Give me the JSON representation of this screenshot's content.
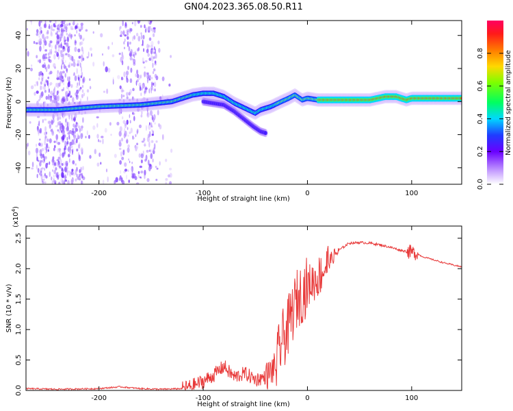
{
  "figure": {
    "title": "GN04.2023.365.08.50.R11"
  },
  "chart_data": [
    {
      "type": "heatmap",
      "xlabel": "Height of straight line (km)",
      "ylabel": "Frequency (Hz)",
      "xlim": [
        -270,
        148
      ],
      "ylim": [
        -50,
        49
      ],
      "xticks": [
        -200,
        -100,
        0,
        100
      ],
      "yticks": [
        -40,
        -20,
        0,
        20,
        40
      ],
      "tick_labels_x": [
        "-200",
        "-100",
        "0",
        "100"
      ],
      "tick_labels_y": [
        "-40",
        "-20",
        "0",
        "20",
        "40"
      ],
      "ridge": {
        "x": [
          -270,
          -240,
          -200,
          -160,
          -130,
          -110,
          -100,
          -90,
          -80,
          -70,
          -60,
          -50,
          -45,
          -35,
          -25,
          -18,
          -12,
          -5,
          0,
          10,
          30,
          60,
          75,
          85,
          95,
          100,
          148
        ],
        "y": [
          -5,
          -5,
          -3,
          -2,
          0,
          4,
          5,
          5,
          3,
          -1,
          -4,
          -7,
          -5,
          -3,
          0,
          2,
          4,
          1,
          2,
          1,
          1,
          1,
          3,
          3,
          1,
          2,
          2
        ]
      },
      "branch": {
        "x": [
          -100,
          -80,
          -70,
          -60,
          -52,
          -45,
          -40
        ],
        "y": [
          0,
          -2,
          -6,
          -11,
          -15,
          -18,
          -19
        ]
      },
      "colorbar": {
        "label": "Normalized spectral amplitude",
        "ticks": [
          0.0,
          0.2,
          0.4,
          0.6,
          0.8
        ],
        "tick_labels": [
          "0.0",
          "0.2",
          "0.4",
          "0.6",
          "0.8"
        ],
        "range": [
          0,
          1
        ]
      }
    },
    {
      "type": "line",
      "xlabel": "Height of straight line (km)",
      "ylabel": "SNR (10 * v/v)",
      "multiplier_label": "(x10",
      "multiplier_exp": "4",
      "multiplier_close": ")",
      "xlim": [
        -270,
        148
      ],
      "ylim": [
        0,
        2.7
      ],
      "xticks": [
        -200,
        -100,
        0,
        100
      ],
      "yticks": [
        0.0,
        0.5,
        1.0,
        1.5,
        2.0,
        2.5
      ],
      "tick_labels_x": [
        "-200",
        "-100",
        "0",
        "100"
      ],
      "tick_labels_y": [
        "0.0",
        "0.5",
        "1.0",
        "1.5",
        "2.0",
        "2.5"
      ],
      "series": [
        {
          "color": "#e83a3a",
          "x": [
            -270,
            -240,
            -200,
            -180,
            -160,
            -140,
            -120,
            -110,
            -100,
            -90,
            -80,
            -75,
            -70,
            -60,
            -50,
            -40,
            -30,
            -25,
            -20,
            -15,
            -10,
            -5,
            0,
            10,
            20,
            30,
            40,
            50,
            60,
            70,
            80,
            90,
            100,
            105,
            110,
            120,
            130,
            140,
            148
          ],
          "y": [
            0.03,
            0.02,
            0.03,
            0.06,
            0.03,
            0.02,
            0.03,
            0.08,
            0.15,
            0.25,
            0.4,
            0.3,
            0.22,
            0.28,
            0.18,
            0.22,
            0.4,
            0.8,
            0.95,
            1.25,
            1.5,
            1.6,
            1.72,
            1.85,
            2.1,
            2.3,
            2.42,
            2.43,
            2.42,
            2.39,
            2.35,
            2.3,
            2.27,
            2.25,
            2.2,
            2.15,
            2.1,
            2.06,
            2.03
          ]
        }
      ]
    }
  ]
}
